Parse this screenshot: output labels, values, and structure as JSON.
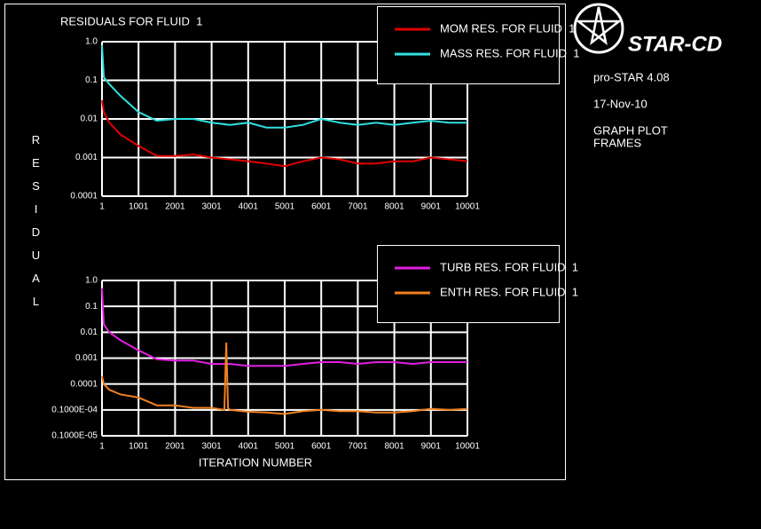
{
  "logo": "STAR-CD",
  "info": [
    "pro-STAR 4.08",
    "17-Nov-10",
    "GRAPH PLOT",
    "FRAMES"
  ],
  "y_label": "RESIDUAL",
  "chart_data": [
    {
      "type": "line",
      "title": "RESIDUALS FOR FLUID  1",
      "ylog": true,
      "grid": true,
      "legend": "upper right",
      "x": [
        1,
        51,
        201,
        501,
        1001,
        1501,
        2001,
        2501,
        3001,
        3501,
        4001,
        4501,
        5001,
        5501,
        6001,
        6501,
        7001,
        7501,
        8001,
        8501,
        9001,
        9501,
        10001
      ],
      "xlim": [
        1,
        10001
      ],
      "xticks": [
        1,
        1001,
        2001,
        3001,
        4001,
        5001,
        6001,
        7001,
        8001,
        9001,
        10001
      ],
      "ylim": [
        0.0001,
        1
      ],
      "yticks": [
        {
          "value": 1,
          "label": "1.0"
        },
        0.1,
        0.01,
        0.001,
        0.0001
      ],
      "series": [
        {
          "name": "MOM RES. FOR FLUID  1",
          "color": "#e00000",
          "values": [
            0.03,
            0.015,
            0.008,
            0.004,
            0.002,
            0.0011,
            0.0011,
            0.0012,
            0.001,
            0.0009,
            0.0008,
            0.0007,
            0.0006,
            0.0008,
            0.001,
            0.0009,
            0.0007,
            0.0007,
            0.0008,
            0.0008,
            0.001,
            0.0009,
            0.0008
          ]
        },
        {
          "name": "MASS RES. FOR FLUID  1",
          "color": "#30e0e0",
          "values": [
            0.8,
            0.12,
            0.08,
            0.04,
            0.015,
            0.009,
            0.01,
            0.01,
            0.008,
            0.007,
            0.008,
            0.006,
            0.006,
            0.007,
            0.01,
            0.008,
            0.007,
            0.008,
            0.007,
            0.008,
            0.009,
            0.008,
            0.008
          ]
        }
      ]
    },
    {
      "type": "line",
      "x_label": "ITERATION NUMBER",
      "ylog": true,
      "grid": true,
      "legend": "upper right",
      "x": [
        1,
        51,
        201,
        501,
        1001,
        1501,
        2001,
        2501,
        3001,
        3351,
        3401,
        3451,
        3501,
        4001,
        4501,
        5001,
        5501,
        6001,
        6501,
        7001,
        7501,
        8001,
        8501,
        9001,
        9501,
        10001
      ],
      "xlim": [
        1,
        10001
      ],
      "xticks": [
        1,
        1001,
        2001,
        3001,
        4001,
        5001,
        6001,
        7001,
        8001,
        9001,
        10001
      ],
      "ylim": [
        1e-06,
        1
      ],
      "yticks": [
        {
          "value": 1,
          "label": "1.0"
        },
        0.1,
        0.01,
        0.001,
        0.0001,
        {
          "value": 1e-05,
          "label": "0.1000E-04"
        },
        {
          "value": 1e-06,
          "label": "0.1000E-05"
        }
      ],
      "series": [
        {
          "name": "TURB RES. FOR FLUID  1",
          "color": "#e020e0",
          "values": [
            0.5,
            0.02,
            0.01,
            0.005,
            0.002,
            0.0009,
            0.0008,
            0.0008,
            0.0006,
            0.0006,
            0.0006,
            0.0006,
            0.0006,
            0.0005,
            0.0005,
            0.0005,
            0.0006,
            0.0007,
            0.0007,
            0.0006,
            0.0007,
            0.0007,
            0.0006,
            0.0007,
            0.0007,
            0.0007
          ]
        },
        {
          "name": "ENTH RES. FOR FLUID  1",
          "color": "#f08020",
          "values": [
            0.0002,
            0.0001,
            6e-05,
            4e-05,
            3e-05,
            1.5e-05,
            1.5e-05,
            1.2e-05,
            1.2e-05,
            1e-05,
            0.004,
            1.2e-05,
            1e-05,
            8.5e-06,
            8e-06,
            7e-06,
            9e-06,
            1e-05,
            9e-06,
            9e-06,
            8e-06,
            8e-06,
            9e-06,
            1.1e-05,
            1e-05,
            1.1e-05
          ]
        }
      ]
    }
  ]
}
